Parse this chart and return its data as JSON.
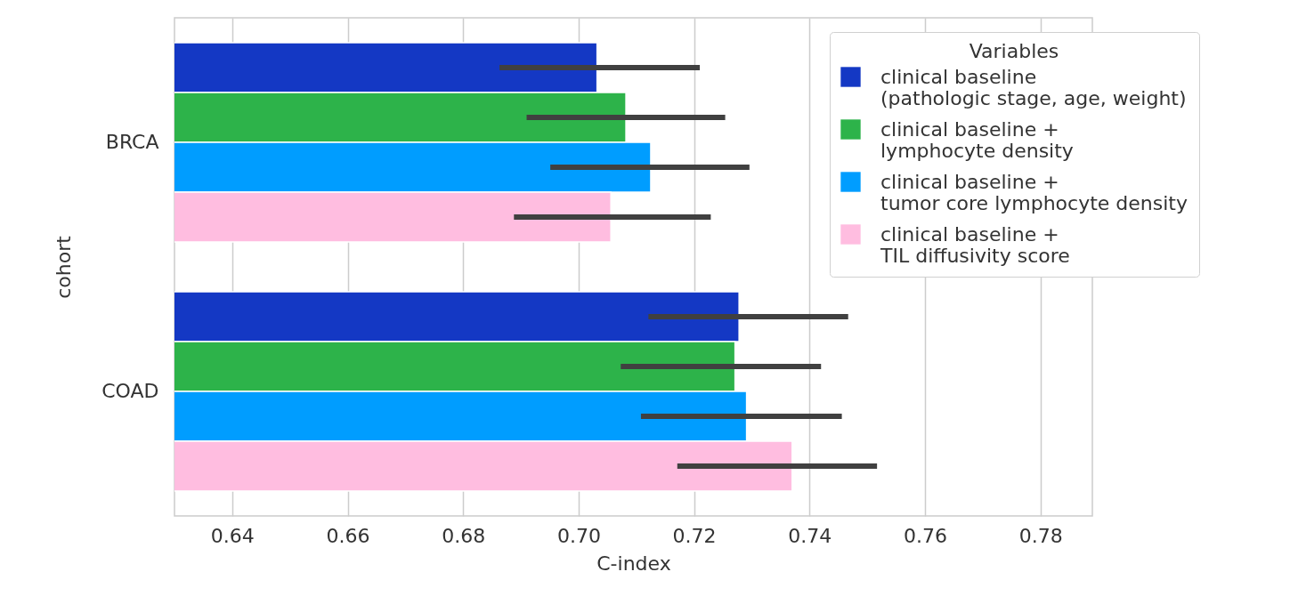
{
  "chart_data": {
    "type": "bar",
    "orientation": "horizontal",
    "xlabel": "C-index",
    "ylabel": "cohort",
    "legend_title": "Variables",
    "categories": [
      "BRCA",
      "COAD"
    ],
    "series": [
      {
        "name": "clinical baseline (pathologic stage, age, weight)",
        "color": "#1438c4",
        "values": [
          0.7032,
          0.7278
        ],
        "errors": [
          [
            0.6863,
            0.721
          ],
          [
            0.7121,
            0.7467
          ]
        ]
      },
      {
        "name": "clinical baseline + lymphocyte density",
        "color": "#2db34a",
        "values": [
          0.7082,
          0.7271
        ],
        "errors": [
          [
            0.691,
            0.7254
          ],
          [
            0.7073,
            0.742
          ]
        ]
      },
      {
        "name": "clinical baseline + tumor core lymphocyte density",
        "color": "#009dff",
        "values": [
          0.7125,
          0.7291
        ],
        "errors": [
          [
            0.6951,
            0.7296
          ],
          [
            0.7108,
            0.7456
          ]
        ]
      },
      {
        "name": "clinical baseline + TIL diffusivity score",
        "color": "#ffbde0",
        "values": [
          0.7056,
          0.737
        ],
        "errors": [
          [
            0.6888,
            0.7229
          ],
          [
            0.7171,
            0.7517
          ]
        ]
      }
    ],
    "xlim": [
      0.63,
      0.789
    ],
    "xticks": [
      {
        "value": 0.64,
        "label": "0.64"
      },
      {
        "value": 0.66,
        "label": "0.66"
      },
      {
        "value": 0.68,
        "label": "0.68"
      },
      {
        "value": 0.7,
        "label": "0.70"
      },
      {
        "value": 0.72,
        "label": "0.72"
      },
      {
        "value": 0.74,
        "label": "0.74"
      },
      {
        "value": 0.76,
        "label": "0.76"
      },
      {
        "value": 0.78,
        "label": "0.78"
      }
    ],
    "grid": "x",
    "legend": "top right"
  }
}
